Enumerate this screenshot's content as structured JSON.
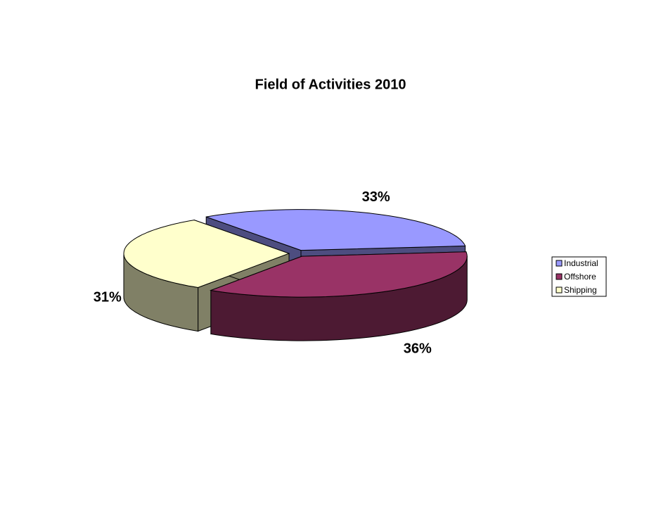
{
  "chart_data": {
    "type": "pie",
    "title": "Field of Activities 2010",
    "categories": [
      "Industrial",
      "Offshore",
      "Shipping"
    ],
    "values": [
      33,
      36,
      31
    ],
    "value_labels": [
      "33%",
      "36%",
      "31%"
    ],
    "colors": [
      "#9999ff",
      "#993366",
      "#ffffcc"
    ],
    "legend": "right"
  }
}
